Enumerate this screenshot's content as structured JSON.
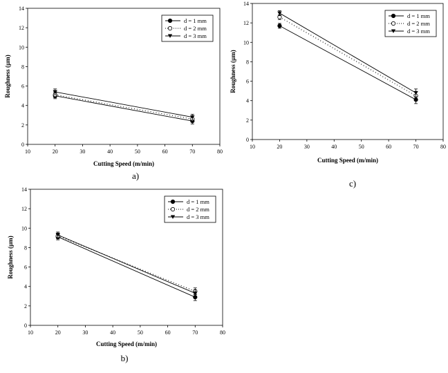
{
  "chart_data": [
    {
      "type": "line",
      "panel_label": "a)",
      "xlabel": "Cutting Speed (m/min)",
      "ylabel": "Roughness (µm)",
      "xlim": [
        10,
        80
      ],
      "ylim": [
        0,
        14
      ],
      "x_ticks": [
        10,
        20,
        30,
        40,
        50,
        60,
        70,
        80
      ],
      "y_ticks": [
        0,
        2,
        4,
        6,
        8,
        10,
        12,
        14
      ],
      "legend_position": "top-right",
      "grid": false,
      "series": [
        {
          "name": "d = 1 mm",
          "marker": "filled-circle",
          "line": "solid",
          "x": [
            20,
            70
          ],
          "y": [
            5.0,
            2.4
          ],
          "err": [
            0.3,
            0.3
          ]
        },
        {
          "name": "d = 2 mm",
          "marker": "open-circle",
          "line": "dotted",
          "x": [
            20,
            70
          ],
          "y": [
            5.1,
            2.6
          ],
          "err": [
            0.3,
            0.3
          ]
        },
        {
          "name": "d = 3 mm",
          "marker": "filled-triangle-down",
          "line": "solid",
          "x": [
            20,
            70
          ],
          "y": [
            5.4,
            2.8
          ],
          "err": [
            0.3,
            0.3
          ]
        }
      ]
    },
    {
      "type": "line",
      "panel_label": "b)",
      "xlabel": "Cutting Speed (m/min)",
      "ylabel": "Roughness (µm)",
      "xlim": [
        10,
        80
      ],
      "ylim": [
        0,
        14
      ],
      "x_ticks": [
        10,
        20,
        30,
        40,
        50,
        60,
        70,
        80
      ],
      "y_ticks": [
        0,
        2,
        4,
        6,
        8,
        10,
        12,
        14
      ],
      "legend_position": "top-right",
      "grid": false,
      "series": [
        {
          "name": "d = 1 mm",
          "marker": "filled-circle",
          "line": "solid",
          "x": [
            20,
            70
          ],
          "y": [
            9.1,
            2.9
          ],
          "err": [
            0.3,
            0.35
          ]
        },
        {
          "name": "d = 2 mm",
          "marker": "open-circle",
          "line": "dotted",
          "x": [
            20,
            70
          ],
          "y": [
            9.2,
            3.5
          ],
          "err": [
            0.3,
            0.35
          ]
        },
        {
          "name": "d = 3 mm",
          "marker": "filled-triangle-down",
          "line": "solid",
          "x": [
            20,
            70
          ],
          "y": [
            9.3,
            3.3
          ],
          "err": [
            0.3,
            0.35
          ]
        }
      ]
    },
    {
      "type": "line",
      "panel_label": "c)",
      "xlabel": "Cutting Speed (m/min)",
      "ylabel": "Roughness (µm)",
      "xlim": [
        10,
        80
      ],
      "ylim": [
        0,
        14
      ],
      "x_ticks": [
        10,
        20,
        30,
        40,
        50,
        60,
        70,
        80
      ],
      "y_ticks": [
        0,
        2,
        4,
        6,
        8,
        10,
        12,
        14
      ],
      "legend_position": "top-right",
      "grid": false,
      "series": [
        {
          "name": "d = 1 mm",
          "marker": "filled-circle",
          "line": "solid",
          "x": [
            20,
            70
          ],
          "y": [
            11.7,
            4.1
          ],
          "err": [
            0.25,
            0.4
          ]
        },
        {
          "name": "d = 2 mm",
          "marker": "open-circle",
          "line": "dotted",
          "x": [
            20,
            70
          ],
          "y": [
            12.6,
            4.5
          ],
          "err": [
            0.25,
            0.4
          ]
        },
        {
          "name": "d = 3 mm",
          "marker": "filled-triangle-down",
          "line": "solid",
          "x": [
            20,
            70
          ],
          "y": [
            13.0,
            4.8
          ],
          "err": [
            0.25,
            0.4
          ]
        }
      ]
    }
  ]
}
